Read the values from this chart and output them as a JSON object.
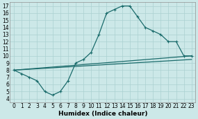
{
  "xlabel": "Humidex (Indice chaleur)",
  "ylabel": "",
  "xlim": [
    -0.5,
    23.5
  ],
  "ylim": [
    3.5,
    17.5
  ],
  "xticks": [
    0,
    1,
    2,
    3,
    4,
    5,
    6,
    7,
    8,
    9,
    10,
    11,
    12,
    13,
    14,
    15,
    16,
    17,
    18,
    19,
    20,
    21,
    22,
    23
  ],
  "yticks": [
    4,
    5,
    6,
    7,
    8,
    9,
    10,
    11,
    12,
    13,
    14,
    15,
    16,
    17
  ],
  "bg_color": "#cce8e8",
  "grid_color": "#aad0d0",
  "line_color": "#1a6b6b",
  "line1_x": [
    0,
    1,
    2,
    3,
    4,
    5,
    6,
    7,
    8,
    9,
    10,
    11,
    12,
    13,
    14,
    15,
    16,
    17,
    18,
    19,
    20,
    21,
    22,
    23
  ],
  "line1_y": [
    8.0,
    7.5,
    7.0,
    6.5,
    5.0,
    4.5,
    5.0,
    6.5,
    9.0,
    9.5,
    10.5,
    13.0,
    16.0,
    16.5,
    17.0,
    17.0,
    15.5,
    14.0,
    13.5,
    13.0,
    12.0,
    12.0,
    10.0,
    10.0
  ],
  "line2_x": [
    0,
    23
  ],
  "line2_y": [
    8.0,
    10.0
  ],
  "line3_x": [
    0,
    23
  ],
  "line3_y": [
    8.0,
    9.5
  ],
  "font_size_label": 6.5,
  "font_size_tick": 5.5
}
